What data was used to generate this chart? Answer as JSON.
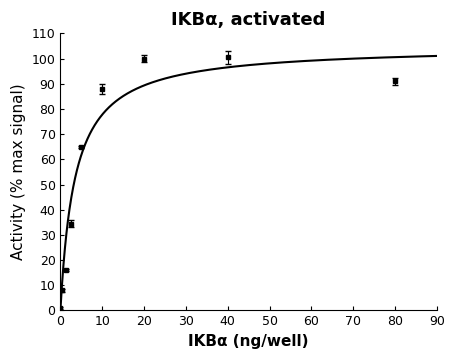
{
  "title": "IKBα, activated",
  "xlabel": "IKBα (ng/well)",
  "ylabel": "Activity (% max signal)",
  "xlim": [
    0,
    90
  ],
  "ylim": [
    0,
    110
  ],
  "xticks": [
    0,
    10,
    20,
    30,
    40,
    50,
    60,
    70,
    80,
    90
  ],
  "yticks": [
    0,
    10,
    20,
    30,
    40,
    50,
    60,
    70,
    80,
    90,
    100,
    110
  ],
  "data_x": [
    0.0,
    0.31,
    1.25,
    2.5,
    5.0,
    10.0,
    20.0,
    40.0,
    80.0
  ],
  "data_y": [
    1.0,
    8.0,
    16.0,
    34.5,
    65.0,
    88.0,
    100.0,
    100.5,
    91.0
  ],
  "data_yerr": [
    0.3,
    0.5,
    0.5,
    1.5,
    0.5,
    2.0,
    1.5,
    2.5,
    1.5
  ],
  "curve_vmax": 105.0,
  "curve_km": 3.5,
  "line_color": "#000000",
  "marker_color": "#000000",
  "background_color": "#ffffff",
  "title_fontsize": 13,
  "label_fontsize": 11,
  "tick_fontsize": 9,
  "title_fontweight": "bold"
}
